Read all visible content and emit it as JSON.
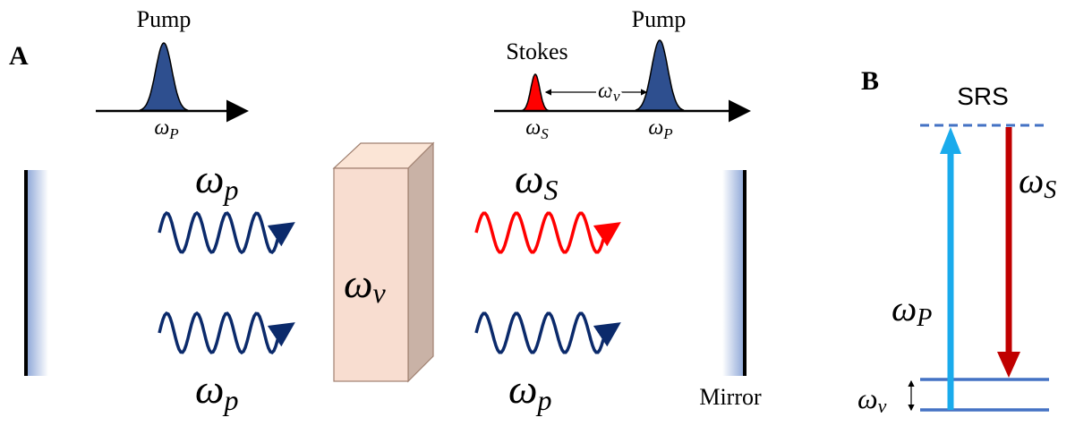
{
  "panel_a": {
    "label": "A",
    "left_spectrum": {
      "peak_label": "Pump",
      "axis_label": {
        "base": "ω",
        "sub": "P"
      }
    },
    "right_spectrum": {
      "stokes_label": "Stokes",
      "pump_label": "Pump",
      "stokes_axis_label": {
        "base": "ω",
        "sub": "S"
      },
      "pump_axis_label": {
        "base": "ω",
        "sub": "P"
      },
      "shift_label": {
        "base": "ω",
        "sub": "ν"
      }
    },
    "waves": {
      "left_top": {
        "base": "ω",
        "sub": "p"
      },
      "left_bottom": {
        "base": "ω",
        "sub": "p"
      },
      "right_top": {
        "base": "ω",
        "sub": "S"
      },
      "right_bottom": {
        "base": "ω",
        "sub": "p"
      }
    },
    "crystal_label": {
      "base": "ω",
      "sub": "ν"
    },
    "mirror_label": "Mirror"
  },
  "panel_b": {
    "label": "B",
    "title": "SRS",
    "pump_label": {
      "base": "ω",
      "sub": "P"
    },
    "stokes_label": {
      "base": "ω",
      "sub": "S"
    },
    "vib_label": {
      "base": "ω",
      "sub": "ν"
    }
  }
}
